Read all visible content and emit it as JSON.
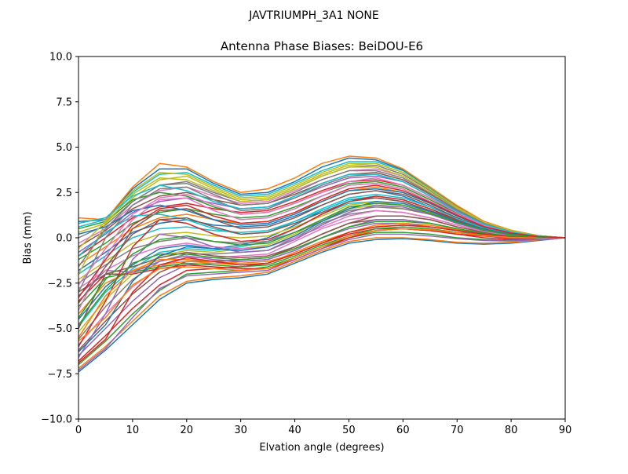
{
  "figure": {
    "suptitle": "JAVTRIUMPH_3A1  NONE"
  },
  "chart_data": {
    "type": "line",
    "title": "Antenna Phase Biases: BeiDOU-E6",
    "xlabel": "Elvation angle (degrees)",
    "ylabel": "Bias (mm)",
    "xlim": [
      0,
      90
    ],
    "ylim": [
      -10,
      10
    ],
    "xticks": [
      0,
      10,
      20,
      30,
      40,
      50,
      60,
      70,
      80,
      90
    ],
    "yticks": [
      -10.0,
      -7.5,
      -5.0,
      -2.5,
      0.0,
      2.5,
      5.0,
      7.5,
      10.0
    ],
    "xtick_labels": [
      "0",
      "10",
      "20",
      "30",
      "40",
      "50",
      "60",
      "70",
      "80",
      "90"
    ],
    "ytick_labels": [
      "−10.0",
      "−7.5",
      "−5.0",
      "−2.5",
      "0.0",
      "2.5",
      "5.0",
      "7.5",
      "10.0"
    ],
    "grid": false,
    "x": [
      0,
      5,
      10,
      15,
      20,
      25,
      30,
      35,
      40,
      45,
      50,
      55,
      60,
      65,
      70,
      75,
      80,
      85,
      90
    ],
    "palette": [
      "#1f77b4",
      "#ff7f0e",
      "#2ca02c",
      "#d62728",
      "#9467bd",
      "#8c564b",
      "#e377c2",
      "#7f7f7f",
      "#bcbd22",
      "#17becf"
    ],
    "series": [
      {
        "values": [
          -7.4,
          -6.2,
          -4.8,
          -3.4,
          -2.5,
          -2.3,
          -2.2,
          -2.0,
          -1.4,
          -0.8,
          -0.3,
          -0.1,
          -0.05,
          -0.15,
          -0.3,
          -0.35,
          -0.3,
          -0.15,
          0
        ]
      },
      {
        "values": [
          -7.2,
          -6.0,
          -4.6,
          -3.2,
          -2.4,
          -2.2,
          -2.1,
          -1.9,
          -1.3,
          -0.7,
          -0.2,
          0.0,
          0.0,
          -0.1,
          -0.25,
          -0.3,
          -0.25,
          -0.12,
          0
        ]
      },
      {
        "values": [
          -7.0,
          -5.7,
          -4.2,
          -2.9,
          -2.0,
          -1.9,
          -1.8,
          -1.6,
          -1.1,
          -0.5,
          0.0,
          0.3,
          0.3,
          0.2,
          0.0,
          -0.1,
          -0.15,
          -0.08,
          0
        ]
      },
      {
        "values": [
          -6.8,
          -5.4,
          -3.9,
          -2.6,
          -1.8,
          -1.7,
          -1.6,
          -1.4,
          -0.9,
          -0.3,
          0.2,
          0.5,
          0.5,
          0.4,
          0.2,
          0.0,
          -0.1,
          -0.05,
          0
        ]
      },
      {
        "values": [
          -6.5,
          -5.0,
          -3.5,
          -2.2,
          -1.5,
          -1.4,
          -1.3,
          -1.2,
          -0.7,
          0.0,
          0.5,
          0.8,
          0.8,
          0.6,
          0.4,
          0.1,
          -0.05,
          -0.03,
          0
        ]
      },
      {
        "values": [
          -6.2,
          -4.6,
          -3.1,
          -1.9,
          -1.3,
          -1.3,
          -1.2,
          -1.1,
          -0.5,
          0.2,
          0.8,
          1.0,
          1.0,
          0.8,
          0.5,
          0.2,
          0.0,
          0.0,
          0
        ]
      },
      {
        "values": [
          -5.9,
          -4.2,
          -2.7,
          -1.6,
          -1.1,
          -1.1,
          -1.0,
          -0.9,
          -0.2,
          0.5,
          1.0,
          1.2,
          1.2,
          1.0,
          0.6,
          0.3,
          0.05,
          0.0,
          0
        ]
      },
      {
        "values": [
          -5.6,
          -3.8,
          -2.3,
          -1.3,
          -0.9,
          -0.9,
          -0.8,
          -0.7,
          0.0,
          0.8,
          1.3,
          1.5,
          1.4,
          1.1,
          0.7,
          0.35,
          0.1,
          0.02,
          0
        ]
      },
      {
        "values": [
          -5.2,
          -3.4,
          -2.0,
          -1.0,
          -0.7,
          -0.8,
          -0.6,
          -0.4,
          0.2,
          1.0,
          1.6,
          1.8,
          1.6,
          1.3,
          0.8,
          0.4,
          0.15,
          0.03,
          0
        ]
      },
      {
        "values": [
          -4.9,
          -3.0,
          -1.7,
          -0.8,
          -0.6,
          -0.7,
          -0.5,
          -0.2,
          0.5,
          1.3,
          1.9,
          2.0,
          1.8,
          1.4,
          0.9,
          0.45,
          0.18,
          0.04,
          0
        ]
      },
      {
        "values": [
          -4.5,
          -2.7,
          -1.5,
          -0.6,
          -0.4,
          -0.6,
          -0.4,
          0.0,
          0.7,
          1.5,
          2.1,
          2.2,
          2.0,
          1.5,
          1.0,
          0.5,
          0.2,
          0.05,
          0
        ]
      },
      {
        "values": [
          -4.2,
          -2.5,
          -1.8,
          -1.5,
          -1.3,
          -1.4,
          -1.5,
          -1.4,
          -0.8,
          -0.2,
          0.3,
          0.6,
          0.7,
          0.6,
          0.4,
          0.2,
          0.05,
          0.0,
          0
        ]
      },
      {
        "values": [
          -3.8,
          -2.2,
          -1.9,
          -1.6,
          -1.4,
          -1.5,
          -1.6,
          -1.5,
          -1.0,
          -0.4,
          0.1,
          0.5,
          0.6,
          0.5,
          0.3,
          0.15,
          0.0,
          -0.02,
          0
        ]
      },
      {
        "values": [
          -3.5,
          -2.0,
          -2.0,
          -1.7,
          -1.5,
          -1.6,
          -1.7,
          -1.7,
          -1.2,
          -0.6,
          0.0,
          0.4,
          0.5,
          0.4,
          0.2,
          0.1,
          0.0,
          -0.02,
          0
        ]
      },
      {
        "values": [
          -3.2,
          -1.8,
          -1.9,
          -1.3,
          -1.0,
          -1.2,
          -1.3,
          -1.2,
          -0.7,
          0.0,
          0.6,
          1.0,
          1.0,
          0.8,
          0.5,
          0.25,
          0.05,
          0.0,
          0
        ]
      },
      {
        "values": [
          -3.0,
          -2.0,
          -1.6,
          -1.1,
          -0.8,
          -1.0,
          -1.1,
          -1.0,
          -0.5,
          0.2,
          0.8,
          1.2,
          1.2,
          1.0,
          0.6,
          0.3,
          0.08,
          0.0,
          0
        ]
      },
      {
        "values": [
          -2.8,
          -1.8,
          -1.0,
          -0.5,
          -0.3,
          -0.5,
          -0.6,
          -0.5,
          0.0,
          0.6,
          1.2,
          1.5,
          1.4,
          1.1,
          0.7,
          0.35,
          0.1,
          0.02,
          0
        ]
      },
      {
        "values": [
          -2.5,
          -1.5,
          -0.6,
          -0.2,
          0.0,
          -0.2,
          -0.3,
          -0.2,
          0.3,
          0.9,
          1.5,
          1.7,
          1.6,
          1.3,
          0.8,
          0.4,
          0.15,
          0.03,
          0
        ]
      },
      {
        "values": [
          -2.3,
          -1.3,
          -0.3,
          0.2,
          0.3,
          0.1,
          0.0,
          0.1,
          0.6,
          1.2,
          1.8,
          2.0,
          1.8,
          1.4,
          0.9,
          0.45,
          0.18,
          0.04,
          0
        ]
      },
      {
        "values": [
          -2.0,
          -1.0,
          0.0,
          0.5,
          0.6,
          0.4,
          0.3,
          0.4,
          0.9,
          1.5,
          2.1,
          2.3,
          2.1,
          1.6,
          1.0,
          0.5,
          0.2,
          0.05,
          0
        ]
      },
      {
        "values": [
          -1.8,
          -0.8,
          0.3,
          0.8,
          1.0,
          0.7,
          0.6,
          0.7,
          1.2,
          1.8,
          2.4,
          2.6,
          2.3,
          1.7,
          1.1,
          0.55,
          0.22,
          0.06,
          0
        ]
      },
      {
        "values": [
          -1.5,
          -0.5,
          0.5,
          1.1,
          1.3,
          1.0,
          0.8,
          0.9,
          1.4,
          2.0,
          2.6,
          2.8,
          2.5,
          1.9,
          1.2,
          0.6,
          0.25,
          0.07,
          0
        ]
      },
      {
        "values": [
          -1.2,
          -0.3,
          0.8,
          1.4,
          1.6,
          1.3,
          1.1,
          1.2,
          1.7,
          2.3,
          2.9,
          3.0,
          2.7,
          2.0,
          1.3,
          0.65,
          0.27,
          0.08,
          0
        ]
      },
      {
        "values": [
          -1.0,
          0.0,
          1.1,
          1.7,
          1.9,
          1.6,
          1.4,
          1.5,
          2.0,
          2.6,
          3.1,
          3.2,
          2.9,
          2.2,
          1.4,
          0.7,
          0.3,
          0.09,
          0
        ]
      },
      {
        "values": [
          -0.8,
          0.2,
          1.4,
          2.0,
          2.2,
          1.9,
          1.6,
          1.7,
          2.2,
          2.8,
          3.3,
          3.4,
          3.1,
          2.3,
          1.5,
          0.75,
          0.32,
          0.1,
          0
        ]
      },
      {
        "values": [
          -0.5,
          0.4,
          1.6,
          2.3,
          2.5,
          2.1,
          1.8,
          1.9,
          2.4,
          3.0,
          3.5,
          3.6,
          3.2,
          2.4,
          1.55,
          0.8,
          0.34,
          0.1,
          0
        ]
      },
      {
        "values": [
          -0.3,
          0.5,
          1.8,
          2.6,
          2.8,
          2.3,
          1.9,
          2.0,
          2.6,
          3.2,
          3.7,
          3.8,
          3.4,
          2.5,
          1.6,
          0.82,
          0.36,
          0.1,
          0
        ]
      },
      {
        "values": [
          0.0,
          0.7,
          2.0,
          2.9,
          3.1,
          2.5,
          2.0,
          2.1,
          2.7,
          3.4,
          3.9,
          4.0,
          3.5,
          2.6,
          1.65,
          0.85,
          0.38,
          0.11,
          0
        ]
      },
      {
        "values": [
          0.3,
          0.8,
          2.2,
          3.2,
          3.4,
          2.7,
          2.1,
          2.2,
          2.8,
          3.5,
          4.0,
          4.1,
          3.6,
          2.7,
          1.7,
          0.87,
          0.39,
          0.11,
          0
        ]
      },
      {
        "values": [
          0.6,
          1.0,
          2.5,
          3.5,
          3.6,
          2.9,
          2.3,
          2.4,
          3.0,
          3.7,
          4.2,
          4.2,
          3.7,
          2.75,
          1.72,
          0.88,
          0.4,
          0.11,
          0
        ]
      },
      {
        "values": [
          0.9,
          1.0,
          2.7,
          3.8,
          3.8,
          3.0,
          2.4,
          2.5,
          3.1,
          3.9,
          4.4,
          4.3,
          3.75,
          2.8,
          1.75,
          0.9,
          0.4,
          0.12,
          0
        ]
      },
      {
        "values": [
          1.1,
          1.0,
          2.8,
          4.1,
          3.9,
          3.1,
          2.5,
          2.7,
          3.3,
          4.1,
          4.5,
          4.4,
          3.8,
          2.8,
          1.78,
          0.9,
          0.42,
          0.12,
          0
        ]
      },
      {
        "values": [
          0.5,
          0.9,
          2.1,
          2.5,
          2.3,
          1.7,
          1.3,
          1.4,
          1.9,
          2.5,
          3.0,
          3.1,
          2.8,
          2.1,
          1.35,
          0.7,
          0.3,
          0.09,
          0
        ]
      },
      {
        "values": [
          -6.0,
          -3.5,
          -0.5,
          1.0,
          0.8,
          0.2,
          -0.2,
          -0.1,
          0.5,
          1.3,
          2.0,
          2.3,
          2.1,
          1.6,
          1.0,
          0.5,
          0.2,
          0.05,
          0
        ]
      },
      {
        "values": [
          -6.6,
          -4.2,
          -1.2,
          0.2,
          0.0,
          -0.5,
          -0.8,
          -0.7,
          -0.1,
          0.7,
          1.4,
          1.8,
          1.7,
          1.3,
          0.8,
          0.4,
          0.15,
          0.04,
          0
        ]
      },
      {
        "values": [
          -5.0,
          -2.0,
          0.5,
          1.5,
          1.6,
          1.0,
          0.5,
          0.6,
          1.1,
          1.8,
          2.4,
          2.6,
          2.4,
          1.8,
          1.1,
          0.55,
          0.22,
          0.06,
          0
        ]
      },
      {
        "values": [
          -4.0,
          -1.0,
          1.0,
          2.1,
          2.2,
          1.5,
          1.0,
          1.1,
          1.6,
          2.3,
          2.9,
          3.0,
          2.7,
          2.0,
          1.3,
          0.65,
          0.27,
          0.08,
          0
        ]
      },
      {
        "values": [
          -3.0,
          0.0,
          1.8,
          2.7,
          2.8,
          2.1,
          1.5,
          1.6,
          2.2,
          2.9,
          3.4,
          3.5,
          3.1,
          2.3,
          1.45,
          0.75,
          0.33,
          0.1,
          0
        ]
      },
      {
        "values": [
          -2.0,
          0.8,
          2.4,
          3.3,
          3.2,
          2.6,
          2.0,
          2.1,
          2.7,
          3.4,
          3.9,
          3.9,
          3.4,
          2.5,
          1.6,
          0.82,
          0.37,
          0.11,
          0
        ]
      },
      {
        "values": [
          -1.0,
          0.3,
          1.2,
          1.3,
          1.0,
          0.5,
          0.2,
          0.3,
          0.9,
          1.6,
          2.2,
          2.4,
          2.2,
          1.7,
          1.05,
          0.52,
          0.21,
          0.06,
          0
        ]
      },
      {
        "values": [
          0.2,
          0.6,
          1.5,
          1.8,
          1.5,
          1.0,
          0.7,
          0.8,
          1.3,
          2.0,
          2.6,
          2.7,
          2.5,
          1.9,
          1.2,
          0.6,
          0.25,
          0.07,
          0
        ]
      },
      {
        "values": [
          -5.5,
          -3.2,
          -1.8,
          -1.2,
          -1.2,
          -1.3,
          -1.4,
          -1.3,
          -0.9,
          -0.3,
          0.3,
          0.7,
          0.8,
          0.7,
          0.45,
          0.22,
          0.07,
          0.01,
          0
        ]
      },
      {
        "values": [
          -4.8,
          -2.9,
          -1.4,
          -0.9,
          -0.9,
          -1.1,
          -1.2,
          -1.1,
          -0.6,
          0.0,
          0.6,
          0.9,
          0.9,
          0.8,
          0.5,
          0.25,
          0.08,
          0.01,
          0
        ]
      },
      {
        "values": [
          -6.9,
          -5.6,
          -3.0,
          -1.5,
          -1.1,
          -1.3,
          -1.5,
          -1.4,
          -0.9,
          -0.3,
          0.3,
          0.6,
          0.7,
          0.6,
          0.4,
          0.2,
          0.05,
          0.0,
          0
        ]
      },
      {
        "values": [
          -7.3,
          -6.1,
          -4.4,
          -2.8,
          -2.1,
          -2.0,
          -1.9,
          -1.8,
          -1.2,
          -0.6,
          -0.1,
          0.2,
          0.2,
          0.1,
          -0.05,
          -0.15,
          -0.18,
          -0.1,
          0
        ]
      },
      {
        "values": [
          -3.6,
          -1.6,
          0.2,
          1.0,
          1.1,
          0.6,
          0.2,
          0.3,
          0.8,
          1.4,
          2.0,
          2.2,
          2.0,
          1.5,
          0.95,
          0.48,
          0.19,
          0.05,
          0
        ]
      },
      {
        "values": [
          -2.6,
          -0.6,
          1.3,
          2.2,
          2.4,
          1.8,
          1.3,
          1.4,
          1.9,
          2.5,
          3.1,
          3.3,
          2.9,
          2.2,
          1.4,
          0.7,
          0.3,
          0.09,
          0
        ]
      },
      {
        "values": [
          -1.6,
          0.5,
          2.0,
          2.9,
          3.0,
          2.4,
          1.8,
          1.9,
          2.5,
          3.2,
          3.7,
          3.7,
          3.3,
          2.45,
          1.55,
          0.8,
          0.35,
          0.1,
          0
        ]
      },
      {
        "values": [
          -0.6,
          0.9,
          2.6,
          3.6,
          3.5,
          2.8,
          2.2,
          2.3,
          2.9,
          3.6,
          4.1,
          4.1,
          3.6,
          2.65,
          1.68,
          0.86,
          0.39,
          0.11,
          0
        ]
      },
      {
        "values": [
          0.8,
          1.1,
          2.3,
          2.9,
          2.6,
          2.0,
          1.6,
          1.7,
          2.3,
          3.0,
          3.5,
          3.5,
          3.1,
          2.3,
          1.45,
          0.74,
          0.32,
          0.09,
          0
        ]
      },
      {
        "values": [
          -6.3,
          -4.8,
          -2.4,
          -1.0,
          -0.5,
          -0.6,
          -0.7,
          -0.5,
          0.1,
          0.9,
          1.6,
          2.0,
          1.9,
          1.45,
          0.9,
          0.45,
          0.18,
          0.05,
          0
        ]
      },
      {
        "values": [
          -5.7,
          -4.4,
          -2.6,
          -1.7,
          -1.6,
          -1.7,
          -1.8,
          -1.7,
          -1.1,
          -0.5,
          0.1,
          0.4,
          0.5,
          0.45,
          0.28,
          0.12,
          0.02,
          -0.01,
          0
        ]
      },
      {
        "values": [
          -4.4,
          -2.3,
          -0.9,
          -0.1,
          0.1,
          -0.2,
          -0.4,
          -0.3,
          0.3,
          1.0,
          1.7,
          1.9,
          1.8,
          1.35,
          0.85,
          0.42,
          0.17,
          0.04,
          0
        ]
      },
      {
        "values": [
          -3.3,
          -1.2,
          0.7,
          1.6,
          1.8,
          1.2,
          0.8,
          0.9,
          1.4,
          2.1,
          2.7,
          2.9,
          2.6,
          1.95,
          1.25,
          0.62,
          0.26,
          0.07,
          0
        ]
      }
    ]
  }
}
